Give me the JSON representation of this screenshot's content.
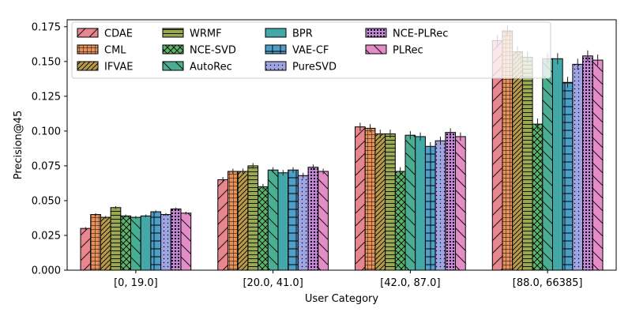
{
  "chart_data": {
    "type": "bar",
    "xlabel": "User Category",
    "ylabel": "Precision@45",
    "ylim": [
      0,
      0.18
    ],
    "yticks": [
      "0.000",
      "0.025",
      "0.050",
      "0.075",
      "0.100",
      "0.125",
      "0.150",
      "0.175"
    ],
    "categories": [
      "[0, 19.0]",
      "[20.0, 41.0]",
      "[42.0, 87.0]",
      "[88.0, 66385]"
    ],
    "legend_position": "top-left",
    "error_bars": true,
    "series": [
      {
        "name": "CDAE",
        "color": "#e8868f",
        "pattern": "diag-fwd",
        "values": [
          0.03,
          0.065,
          0.103,
          0.165
        ],
        "err": [
          0.001,
          0.002,
          0.003,
          0.004
        ]
      },
      {
        "name": "CML",
        "color": "#e6915a",
        "pattern": "grid",
        "values": [
          0.04,
          0.071,
          0.102,
          0.172
        ],
        "err": [
          0.001,
          0.002,
          0.003,
          0.004
        ]
      },
      {
        "name": "IFVAE",
        "color": "#b89b4a",
        "pattern": "diag-fwd-dense",
        "values": [
          0.038,
          0.071,
          0.098,
          0.157
        ],
        "err": [
          0.001,
          0.002,
          0.003,
          0.004
        ]
      },
      {
        "name": "WRMF",
        "color": "#9aa84f",
        "pattern": "horiz",
        "values": [
          0.045,
          0.075,
          0.098,
          0.153
        ],
        "err": [
          0.001,
          0.002,
          0.003,
          0.004
        ]
      },
      {
        "name": "NCE-SVD",
        "color": "#5bb46a",
        "pattern": "crosshatch",
        "values": [
          0.039,
          0.06,
          0.071,
          0.105
        ],
        "err": [
          0.001,
          0.002,
          0.003,
          0.004
        ]
      },
      {
        "name": "AutoRec",
        "color": "#4aae92",
        "pattern": "diag-back",
        "values": [
          0.038,
          0.072,
          0.097,
          0.152
        ],
        "err": [
          0.001,
          0.002,
          0.003,
          0.004
        ]
      },
      {
        "name": "BPR",
        "color": "#45a8a8",
        "pattern": "none",
        "values": [
          0.039,
          0.07,
          0.096,
          0.152
        ],
        "err": [
          0.001,
          0.002,
          0.003,
          0.004
        ]
      },
      {
        "name": "VAE-CF",
        "color": "#4f9ec8",
        "pattern": "plus",
        "values": [
          0.042,
          0.072,
          0.089,
          0.135
        ],
        "err": [
          0.001,
          0.002,
          0.003,
          0.004
        ]
      },
      {
        "name": "PureSVD",
        "color": "#9ea5e2",
        "pattern": "dots",
        "values": [
          0.04,
          0.068,
          0.093,
          0.148
        ],
        "err": [
          0.001,
          0.002,
          0.003,
          0.004
        ]
      },
      {
        "name": "NCE-PLRec",
        "color": "#c58ad8",
        "pattern": "dense-dots",
        "values": [
          0.044,
          0.074,
          0.099,
          0.154
        ],
        "err": [
          0.001,
          0.002,
          0.003,
          0.004
        ]
      },
      {
        "name": "PLRec",
        "color": "#e48cc6",
        "pattern": "diag-back",
        "values": [
          0.041,
          0.071,
          0.096,
          0.151
        ],
        "err": [
          0.001,
          0.002,
          0.003,
          0.004
        ]
      }
    ]
  }
}
